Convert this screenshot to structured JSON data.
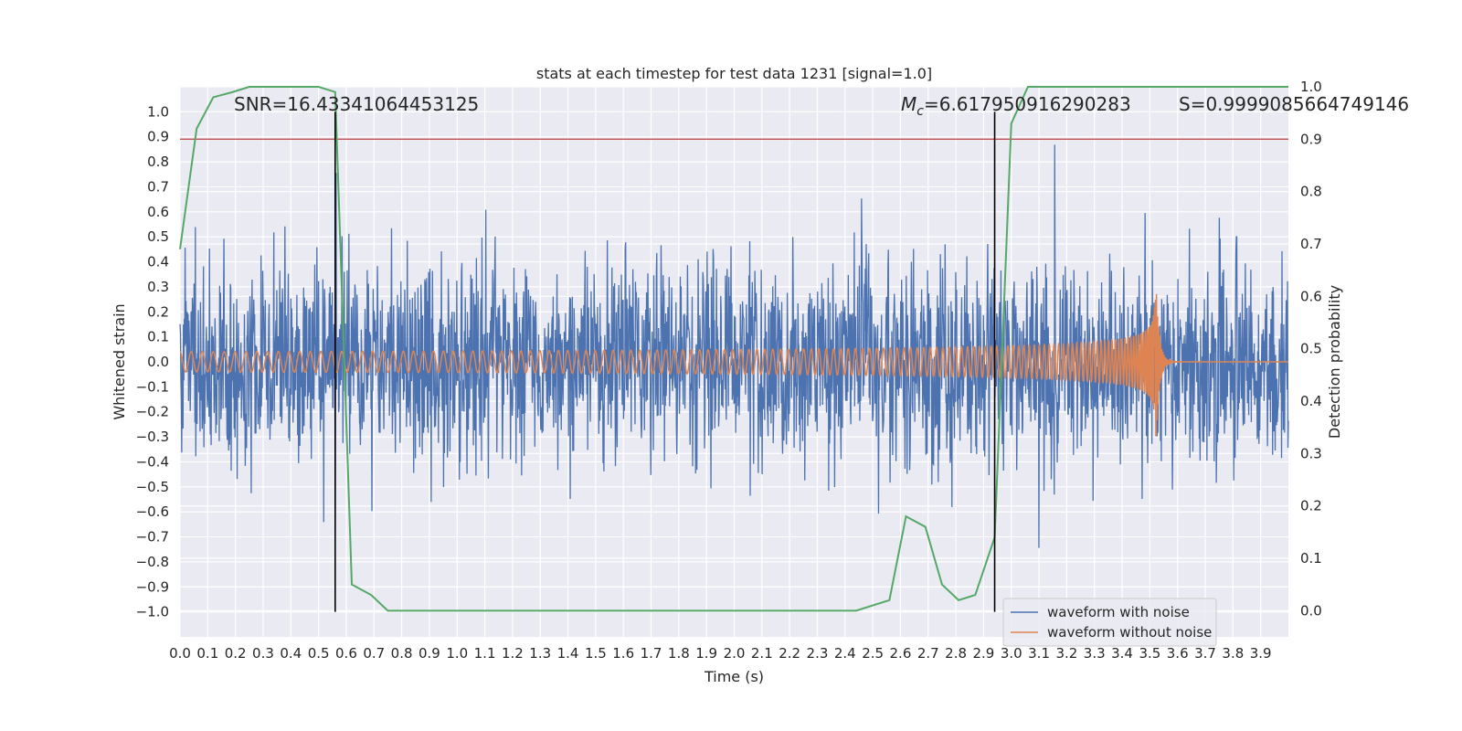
{
  "chart_data": {
    "type": "line",
    "title": "stats at each timestep for test data 1231 [signal=1.0]",
    "xlabel": "Time (s)",
    "ylabel": "Whitened strain",
    "y2label": "Detection probability",
    "xlim": [
      0.0,
      4.0
    ],
    "ylim": [
      -1.1,
      1.1
    ],
    "y2lim": [
      -0.05,
      1.0
    ],
    "x_ticks": [
      "0.0",
      "0.1",
      "0.2",
      "0.3",
      "0.4",
      "0.5",
      "0.6",
      "0.7",
      "0.8",
      "0.9",
      "1.0",
      "1.1",
      "1.2",
      "1.3",
      "1.4",
      "1.5",
      "1.6",
      "1.7",
      "1.8",
      "1.9",
      "2.0",
      "2.1",
      "2.2",
      "2.3",
      "2.4",
      "2.5",
      "2.6",
      "2.7",
      "2.8",
      "2.9",
      "3.0",
      "3.1",
      "3.2",
      "3.3",
      "3.4",
      "3.5",
      "3.6",
      "3.7",
      "3.8",
      "3.9"
    ],
    "y_ticks": [
      "1.0",
      "0.9",
      "0.8",
      "0.7",
      "0.6",
      "0.5",
      "0.4",
      "0.3",
      "0.2",
      "0.1",
      "0.0",
      "−0.1",
      "−0.2",
      "−0.3",
      "−0.4",
      "−0.5",
      "−0.6",
      "−0.7",
      "−0.8",
      "−0.9",
      "−1.0"
    ],
    "y2_ticks": [
      "1.0",
      "0.9",
      "0.8",
      "0.7",
      "0.6",
      "0.5",
      "0.4",
      "0.3",
      "0.2",
      "0.1",
      "0.0"
    ],
    "annotations": {
      "snr": "SNR=16.43341064453125",
      "mc_symbol": "M",
      "mc_sub": "c",
      "mc_value": "=6.617950916290283",
      "s": "S=0.9999085664749146"
    },
    "threshold": {
      "value": 0.9,
      "axis": "right",
      "color": "#c44e52"
    },
    "vlines": [
      0.56,
      2.94
    ],
    "series": [
      {
        "name": "waveform with noise",
        "color": "#4c72b0",
        "kind": "noise",
        "std": 0.2
      },
      {
        "name": "waveform without noise",
        "color": "#dd8452",
        "kind": "chirp",
        "amp_start": 0.04,
        "amp_peak": 0.38,
        "merger_time": 3.52,
        "cycles": 140
      },
      {
        "name": "detection probability",
        "color": "#55a868",
        "axis": "right",
        "x": [
          0.0,
          0.06,
          0.12,
          0.19,
          0.25,
          0.31,
          0.37,
          0.44,
          0.5,
          0.56,
          0.62,
          0.69,
          0.75,
          0.81,
          0.87,
          0.94,
          1.0,
          1.06,
          1.12,
          1.19,
          1.25,
          1.31,
          1.37,
          1.44,
          1.5,
          1.56,
          1.62,
          1.69,
          1.75,
          1.81,
          1.87,
          1.94,
          2.0,
          2.06,
          2.12,
          2.19,
          2.25,
          2.31,
          2.37,
          2.44,
          2.5,
          2.56,
          2.62,
          2.69,
          2.75,
          2.81,
          2.87,
          2.94,
          3.0,
          3.06,
          3.12,
          3.19,
          3.25,
          3.31,
          3.37,
          3.44,
          3.5,
          3.56,
          3.62,
          3.69,
          3.75,
          3.81,
          3.87,
          3.94,
          4.0
        ],
        "y": [
          0.69,
          0.92,
          0.98,
          0.99,
          1.0,
          1.0,
          1.0,
          1.0,
          1.0,
          0.99,
          0.05,
          0.03,
          0.0,
          0.0,
          0.0,
          0.0,
          0.0,
          0.0,
          0.0,
          0.0,
          0.0,
          0.0,
          0.0,
          0.0,
          0.0,
          0.0,
          0.0,
          0.0,
          0.0,
          0.0,
          0.0,
          0.0,
          0.0,
          0.0,
          0.0,
          0.0,
          0.0,
          0.0,
          0.0,
          0.0,
          0.01,
          0.02,
          0.18,
          0.16,
          0.05,
          0.02,
          0.03,
          0.14,
          0.93,
          1.0,
          1.0,
          1.0,
          1.0,
          1.0,
          1.0,
          1.0,
          1.0,
          1.0,
          1.0,
          1.0,
          1.0,
          1.0,
          1.0,
          1.0,
          1.0
        ]
      }
    ],
    "legend": {
      "position": "bottom-right",
      "entries": [
        "waveform with noise",
        "waveform without noise"
      ]
    }
  }
}
